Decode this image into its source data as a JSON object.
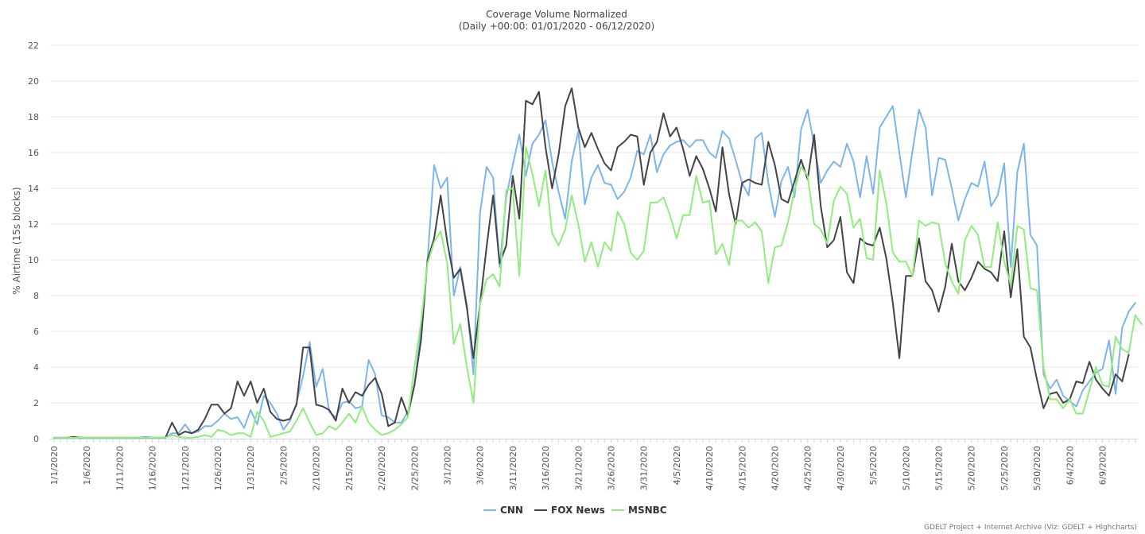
{
  "chart_data": {
    "type": "line",
    "title": "Coverage Volume Normalized",
    "subtitle": "(Daily +00:00: 01/01/2020 - 06/12/2020)",
    "ylabel": "% Airtime (15s blocks)",
    "xlabel": "",
    "ylim": [
      0,
      22
    ],
    "yticks": [
      0,
      2,
      4,
      6,
      8,
      10,
      12,
      14,
      16,
      18,
      20,
      22
    ],
    "x_start": "1/1/2020",
    "x_tick_labels": [
      "1/1/2020",
      "1/6/2020",
      "1/11/2020",
      "1/16/2020",
      "1/21/2020",
      "1/26/2020",
      "1/31/2020",
      "2/5/2020",
      "2/10/2020",
      "2/15/2020",
      "2/20/2020",
      "2/25/2020",
      "3/1/2020",
      "3/6/2020",
      "3/11/2020",
      "3/16/2020",
      "3/21/2020",
      "3/26/2020",
      "3/31/2020",
      "4/5/2020",
      "4/10/2020",
      "4/15/2020",
      "4/20/2020",
      "4/25/2020",
      "4/30/2020",
      "5/5/2020",
      "5/10/2020",
      "5/15/2020",
      "5/20/2020",
      "5/25/2020",
      "5/30/2020",
      "6/4/2020",
      "6/9/2020"
    ],
    "grid": true,
    "legend_position": "bottom-center",
    "credit": "GDELT Project + Internet Archive (Viz: GDELT + Highcharts)",
    "series": [
      {
        "name": "CNN",
        "color": "#7cb5ec",
        "values": [
          0.05,
          0.05,
          0.05,
          0.05,
          0.05,
          0.05,
          0.05,
          0.05,
          0.05,
          0.05,
          0.05,
          0.05,
          0.05,
          0.05,
          0.1,
          0.05,
          0.05,
          0.05,
          0.3,
          0.3,
          0.8,
          0.3,
          0.4,
          0.7,
          0.7,
          1.0,
          1.4,
          1.1,
          1.2,
          0.6,
          1.6,
          0.8,
          2.4,
          2.0,
          1.4,
          0.5,
          1.0,
          2.0,
          3.5,
          5.4,
          2.9,
          3.9,
          1.5,
          1.2,
          2.0,
          2.1,
          1.7,
          1.8,
          4.4,
          3.6,
          1.3,
          1.2,
          0.9,
          0.9,
          1.5,
          3.0,
          6.0,
          10.0,
          15.3,
          14.0,
          14.6,
          8.0,
          9.6,
          7.5,
          3.6,
          12.6,
          15.2,
          14.6,
          9.6,
          13.5,
          15.3,
          17.0,
          14.7,
          16.5,
          17.0,
          17.8,
          15.5,
          13.8,
          12.3,
          15.5,
          17.2,
          13.1,
          14.6,
          15.3,
          14.3,
          14.2,
          13.4,
          13.8,
          14.6,
          16.1,
          15.9,
          17.0,
          14.9,
          15.9,
          16.4,
          16.6,
          16.7,
          16.3,
          16.7,
          16.7,
          16.0,
          15.7,
          17.2,
          16.8,
          15.6,
          14.3,
          13.6,
          16.8,
          17.1,
          14.3,
          12.4,
          14.4,
          15.2,
          13.5,
          17.3,
          18.4,
          16.4,
          14.3,
          15.0,
          15.5,
          15.2,
          16.5,
          15.5,
          13.5,
          15.8,
          13.7,
          17.4,
          18.0,
          18.6,
          16.0,
          13.5,
          16.1,
          18.4,
          17.4,
          13.6,
          15.7,
          15.6,
          14.0,
          12.2,
          13.4,
          14.3,
          14.1,
          15.5,
          13.0,
          13.6,
          15.4,
          9.6,
          14.9,
          16.5,
          11.4,
          10.8,
          3.6,
          2.8,
          3.3,
          2.4,
          2.1,
          1.8,
          2.7,
          3.2,
          3.7,
          3.9,
          5.5,
          2.5,
          6.2,
          7.1,
          7.6
        ]
      },
      {
        "name": "FOX News",
        "color": "#434348",
        "values": [
          0.05,
          0.05,
          0.05,
          0.1,
          0.05,
          0.05,
          0.05,
          0.05,
          0.05,
          0.05,
          0.05,
          0.05,
          0.05,
          0.05,
          0.05,
          0.05,
          0.05,
          0.05,
          0.9,
          0.2,
          0.4,
          0.3,
          0.5,
          1.1,
          1.9,
          1.9,
          1.4,
          1.7,
          3.2,
          2.4,
          3.2,
          2.0,
          2.8,
          1.5,
          1.1,
          1.0,
          1.1,
          1.9,
          5.1,
          5.1,
          1.9,
          1.8,
          1.6,
          1.0,
          2.8,
          2.0,
          2.6,
          2.4,
          3.0,
          3.4,
          2.5,
          0.7,
          0.9,
          2.3,
          1.3,
          3.0,
          5.5,
          10.0,
          11.2,
          13.6,
          11.0,
          9.0,
          9.5,
          7.3,
          4.5,
          7.5,
          10.7,
          13.6,
          9.8,
          10.8,
          14.7,
          12.3,
          18.9,
          18.7,
          19.4,
          16.3,
          14.0,
          15.9,
          18.6,
          19.6,
          17.4,
          16.3,
          17.1,
          16.2,
          15.4,
          15.0,
          16.3,
          16.6,
          17.0,
          16.9,
          14.2,
          16.0,
          16.6,
          18.2,
          16.9,
          17.4,
          16.2,
          14.7,
          15.8,
          15.1,
          14.0,
          12.7,
          16.3,
          13.7,
          12.0,
          14.3,
          14.5,
          14.3,
          14.2,
          16.6,
          15.3,
          13.4,
          13.2,
          14.4,
          15.6,
          14.5,
          17.0,
          13.0,
          10.7,
          11.1,
          12.4,
          9.3,
          8.7,
          11.2,
          10.9,
          10.8,
          11.8,
          10.1,
          7.6,
          4.5,
          9.1,
          9.1,
          11.2,
          8.8,
          8.3,
          7.1,
          8.5,
          10.9,
          8.8,
          8.3,
          9.0,
          9.9,
          9.5,
          9.3,
          8.8,
          11.6,
          7.9,
          10.6,
          5.7,
          5.1,
          3.3,
          1.7,
          2.5,
          2.6,
          2.0,
          2.2,
          3.2,
          3.1,
          4.3,
          3.3,
          2.8,
          2.4,
          3.6,
          3.2,
          4.7
        ]
      },
      {
        "name": "MSNBC",
        "color": "#90ed7d",
        "values": [
          0.05,
          0.05,
          0.05,
          0.05,
          0.05,
          0.05,
          0.05,
          0.05,
          0.05,
          0.05,
          0.05,
          0.05,
          0.05,
          0.05,
          0.05,
          0.05,
          0.05,
          0.05,
          0.2,
          0.1,
          0.05,
          0.05,
          0.1,
          0.2,
          0.1,
          0.5,
          0.4,
          0.2,
          0.3,
          0.3,
          0.1,
          1.5,
          1.0,
          0.1,
          0.2,
          0.3,
          0.4,
          1.0,
          1.7,
          0.9,
          0.2,
          0.3,
          0.7,
          0.5,
          0.9,
          1.4,
          0.9,
          1.8,
          0.9,
          0.5,
          0.2,
          0.3,
          0.5,
          0.8,
          1.2,
          4.0,
          6.5,
          9.8,
          11.0,
          11.6,
          9.8,
          5.3,
          6.4,
          4.0,
          2.0,
          7.5,
          8.9,
          9.2,
          8.5,
          13.9,
          14.0,
          9.1,
          16.3,
          14.8,
          13.0,
          15.0,
          11.5,
          10.8,
          11.7,
          13.6,
          12.0,
          9.9,
          11.0,
          9.6,
          11.0,
          10.5,
          12.7,
          12.0,
          10.4,
          10.0,
          10.5,
          13.2,
          13.2,
          13.5,
          12.5,
          11.2,
          12.5,
          12.5,
          14.7,
          13.2,
          13.3,
          10.3,
          10.9,
          9.7,
          12.2,
          12.2,
          11.8,
          12.1,
          11.6,
          8.7,
          10.7,
          10.8,
          12.1,
          13.9,
          15.2,
          14.7,
          12.0,
          11.7,
          10.9,
          13.3,
          14.1,
          13.7,
          11.8,
          12.3,
          10.1,
          10.0,
          15.0,
          13.2,
          10.4,
          9.9,
          9.9,
          9.1,
          12.2,
          11.9,
          12.1,
          12.0,
          9.8,
          8.8,
          8.1,
          11.1,
          11.9,
          11.4,
          9.6,
          9.6,
          12.1,
          9.9,
          8.6,
          11.9,
          11.7,
          8.4,
          8.3,
          4.0,
          2.2,
          2.2,
          1.7,
          2.2,
          1.4,
          1.4,
          2.7,
          4.0,
          3.0,
          2.9,
          5.7,
          5.0,
          4.8,
          6.9,
          6.4
        ]
      }
    ]
  }
}
